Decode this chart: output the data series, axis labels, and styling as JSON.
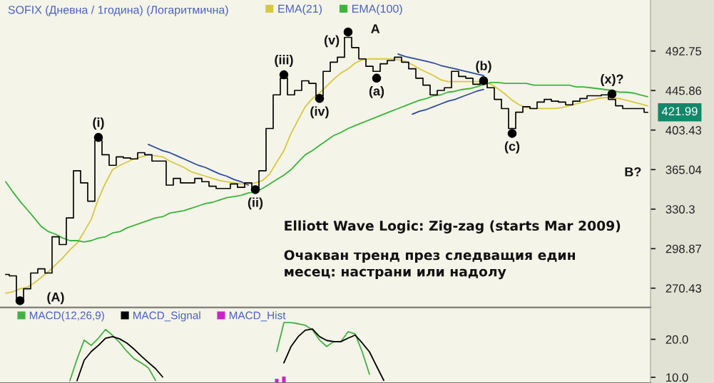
{
  "chart_data": [
    {
      "type": "step",
      "title": "SOFIX (Дневна / 1година) (Логаритмична)",
      "categories": [
        null,
        null,
        null,
        null,
        null,
        null,
        null,
        null,
        null,
        null,
        null,
        null,
        null,
        null,
        null,
        null,
        null,
        null,
        null,
        null,
        null,
        null,
        null,
        null,
        null,
        null,
        null,
        null,
        null,
        null,
        null,
        null,
        null,
        null,
        null,
        null,
        null,
        null,
        null,
        null,
        null,
        null,
        null,
        null,
        null,
        null,
        null,
        null,
        null,
        null,
        null,
        null,
        null,
        null,
        null,
        null,
        null,
        null,
        null,
        null,
        null,
        null,
        null,
        null,
        null,
        null,
        null,
        null,
        null,
        null,
        null,
        null,
        null,
        null,
        null,
        null,
        null,
        null,
        null,
        null,
        null,
        null,
        null,
        null,
        null,
        null,
        null,
        null,
        null,
        null,
        null
      ],
      "series": [
        {
          "color": "#000000",
          "values": [
            280,
            279,
            263,
            270,
            281,
            284,
            281,
            308,
            302,
            323,
            364,
            353,
            337,
            393,
            379,
            369,
            377,
            376,
            375,
            381,
            379,
            373,
            373,
            351,
            357,
            353,
            353,
            357,
            354,
            350,
            348,
            348,
            352,
            349,
            353,
            348,
            364,
            405,
            441,
            460,
            441,
            446,
            457,
            454,
            440,
            468,
            479,
            485,
            510,
            497,
            483,
            474,
            468,
            477,
            481,
            485,
            479,
            471,
            460,
            452,
            441,
            446,
            449,
            468,
            462,
            460,
            453,
            457,
            449,
            436,
            426,
            405,
            422,
            428,
            426,
            433,
            436,
            434,
            433,
            430,
            434,
            437,
            440,
            440,
            441,
            436,
            429,
            426,
            426,
            426,
            421.99
          ],
          "value_labels": [
            null,
            null,
            null,
            null,
            null,
            null,
            null,
            null,
            null,
            null,
            null,
            null,
            null,
            null,
            null,
            null,
            null,
            null,
            null,
            null,
            null,
            null,
            null,
            null,
            null,
            null,
            null,
            null,
            null,
            null,
            null,
            null,
            null,
            null,
            null,
            null,
            null,
            null,
            null,
            null,
            null,
            null,
            null,
            null,
            null,
            null,
            null,
            null,
            null,
            null,
            null,
            null,
            null,
            null,
            null,
            null,
            null,
            null,
            null,
            null,
            null,
            null,
            null,
            null,
            null,
            null,
            null,
            null,
            null,
            null,
            null,
            null,
            null,
            null,
            null,
            null,
            null,
            null,
            null,
            null,
            null,
            null,
            null,
            null,
            null,
            null,
            null,
            null,
            null,
            null,
            "421.99"
          ]
        },
        {
          "name": "EMA(21)",
          "type": "line",
          "color": "#d8c840",
          "values": [
            267,
            268,
            270,
            271,
            274,
            278,
            282,
            287,
            292,
            298,
            303,
            312,
            322,
            339,
            353,
            365,
            369,
            372,
            375,
            377,
            379,
            378,
            377,
            373,
            370,
            367,
            363,
            361,
            359,
            357,
            355,
            354,
            353,
            352,
            352,
            353,
            355,
            361,
            372,
            383,
            400,
            414,
            428,
            437,
            443,
            451,
            459,
            466,
            471,
            478,
            482,
            483,
            483,
            483,
            483,
            482,
            480,
            476,
            471,
            467,
            463,
            458,
            456,
            456,
            456,
            456,
            456,
            456,
            453,
            448,
            442,
            435,
            430,
            427,
            426,
            426,
            426,
            426,
            427,
            429,
            431,
            433,
            435,
            437,
            438,
            438,
            437,
            435,
            433,
            431,
            429
          ]
        },
        {
          "name": "EMA(100)",
          "type": "line",
          "color": "#3cb43c",
          "values": [
            354,
            345,
            337,
            330,
            323,
            316,
            312,
            310,
            307,
            305,
            305,
            304,
            305,
            307,
            308,
            311,
            312,
            315,
            317,
            319,
            321,
            323,
            324,
            327,
            328,
            329,
            331,
            333,
            335,
            336,
            338,
            340,
            341,
            342,
            344,
            345,
            348,
            352,
            356,
            360,
            365,
            372,
            379,
            383,
            388,
            393,
            398,
            401,
            405,
            408,
            411,
            414,
            417,
            420,
            423,
            426,
            429,
            432,
            435,
            437,
            440,
            441,
            444,
            445,
            447,
            448,
            450,
            453,
            455,
            455,
            454,
            454,
            454,
            454,
            452,
            452,
            452,
            452,
            452,
            452,
            450,
            450,
            449,
            448,
            447,
            446,
            444,
            444,
            443,
            441,
            439
          ]
        },
        {
          "type": "line",
          "color": "#2c4c9c",
          "values": [
            null,
            null,
            null,
            null,
            null,
            null,
            null,
            null,
            null,
            null,
            null,
            null,
            null,
            null,
            null,
            null,
            null,
            null,
            null,
            null,
            389,
            386,
            383,
            381,
            378,
            375,
            372,
            369,
            367,
            364,
            361,
            359,
            356,
            354,
            351,
            null,
            null,
            null,
            null,
            null,
            null,
            null,
            null,
            null,
            null,
            null,
            null,
            null,
            null,
            null,
            null,
            null,
            null,
            null,
            null,
            null,
            null,
            null,
            null,
            null,
            null,
            null,
            null,
            null,
            null,
            null,
            null,
            null,
            null,
            null,
            null,
            null,
            null,
            null,
            null,
            null,
            null,
            null,
            null,
            null,
            null,
            null,
            null,
            null,
            null,
            null,
            null,
            null,
            null,
            null,
            null
          ]
        },
        {
          "type": "line",
          "color": "#2c4c9c",
          "values": [
            null,
            null,
            null,
            null,
            null,
            null,
            null,
            null,
            null,
            null,
            null,
            null,
            null,
            null,
            null,
            null,
            null,
            null,
            null,
            null,
            null,
            null,
            null,
            null,
            null,
            null,
            null,
            null,
            null,
            null,
            null,
            null,
            null,
            null,
            null,
            null,
            null,
            null,
            null,
            null,
            null,
            null,
            null,
            null,
            null,
            null,
            null,
            null,
            null,
            null,
            null,
            null,
            null,
            null,
            null,
            489,
            486,
            484,
            482,
            480,
            478,
            475,
            473,
            471,
            469,
            467,
            465,
            463,
            null,
            null,
            null,
            null,
            null,
            null,
            null,
            null,
            null,
            null,
            null,
            null,
            null,
            null,
            null,
            null,
            null,
            null,
            null,
            null,
            null,
            null,
            null
          ]
        },
        {
          "type": "line",
          "color": "#2c4c9c",
          "values": [
            null,
            null,
            null,
            null,
            null,
            null,
            null,
            null,
            null,
            null,
            null,
            null,
            null,
            null,
            null,
            null,
            null,
            null,
            null,
            null,
            null,
            null,
            null,
            null,
            null,
            null,
            null,
            null,
            null,
            null,
            null,
            null,
            null,
            null,
            null,
            null,
            null,
            null,
            null,
            null,
            null,
            null,
            null,
            null,
            null,
            null,
            null,
            null,
            null,
            null,
            null,
            null,
            null,
            null,
            null,
            null,
            null,
            420,
            423,
            425,
            428,
            431,
            434,
            436,
            439,
            442,
            445,
            447,
            null,
            null,
            null,
            null,
            null,
            null,
            null,
            null,
            null,
            null,
            null,
            null,
            null,
            null,
            null,
            null,
            null,
            null,
            null,
            null,
            null,
            null,
            null
          ]
        },
        {
          "type": "scatter",
          "color": "#000000",
          "marker": "circle",
          "values": [
            null,
            null,
            262,
            null,
            null,
            null,
            null,
            null,
            null,
            null,
            null,
            null,
            null,
            396,
            null,
            null,
            null,
            null,
            null,
            null,
            null,
            null,
            null,
            null,
            null,
            null,
            null,
            null,
            null,
            null,
            null,
            null,
            null,
            null,
            null,
            347,
            null,
            null,
            null,
            464,
            null,
            null,
            null,
            null,
            437,
            null,
            null,
            null,
            517,
            null,
            null,
            null,
            460,
            null,
            null,
            null,
            null,
            null,
            null,
            null,
            null,
            null,
            null,
            null,
            null,
            null,
            null,
            457,
            null,
            null,
            null,
            400,
            null,
            null,
            null,
            null,
            null,
            null,
            null,
            null,
            null,
            null,
            null,
            null,
            null,
            442,
            null,
            null,
            null,
            null,
            null
          ]
        }
      ],
      "log": true,
      "ylim": [
        257.6,
        560.6
      ],
      "yticks": [
        270.43,
        298.87,
        330.3,
        365.04,
        403.43,
        445.86,
        492.75
      ],
      "tick_labels": "y",
      "legend": "top left",
      "annotations": [
        {
          "text": "(i)",
          "y": 396
        },
        {
          "text": "(ii)",
          "y": 347
        },
        {
          "text": "(iii)",
          "y": 464
        },
        {
          "text": "(iv)",
          "y": 437
        },
        {
          "text": "(a)",
          "y": 460
        },
        {
          "text": "(b)",
          "y": 457
        },
        {
          "text": "(c)",
          "y": 400
        },
        {
          "text": "(x)?",
          "y": 442
        },
        "(A)",
        "(v)",
        "A",
        "B?",
        "Elliott Wave Logic: Zig-zag (starts Mar 2009)",
        "Очакван тренд през следващия един\nмесец: настрани или надолу"
      ]
    },
    {
      "type": "line",
      "categories": [
        null,
        null,
        null,
        null,
        null,
        null,
        null,
        null,
        null,
        null,
        null,
        null,
        null,
        null,
        null,
        null,
        null,
        null,
        null,
        null,
        null,
        null,
        null,
        null,
        null,
        null,
        null,
        null,
        null,
        null,
        null,
        null,
        null,
        null,
        null,
        null,
        null,
        null,
        null,
        null,
        null,
        null,
        null,
        null,
        null,
        null,
        null,
        null,
        null,
        null,
        null,
        null,
        null,
        null,
        null,
        null,
        null,
        null,
        null,
        null,
        null,
        null,
        null,
        null,
        null,
        null,
        null,
        null,
        null,
        null,
        null,
        null,
        null,
        null,
        null,
        null,
        null,
        null,
        null,
        null,
        null,
        null,
        null,
        null,
        null,
        null,
        null,
        null,
        null,
        null,
        null
      ],
      "series": [
        {
          "name": "MACD(12,26,9)",
          "color": "#44b044",
          "values": [
            null,
            null,
            null,
            null,
            null,
            null,
            null,
            null,
            null,
            9.1,
            14.8,
            19.8,
            18.4,
            20.3,
            22.6,
            21.0,
            19.1,
            16.8,
            14.9,
            13.8,
            12.5,
            9.2,
            null,
            null,
            null,
            null,
            null,
            null,
            null,
            null,
            null,
            null,
            null,
            null,
            null,
            null,
            null,
            null,
            16.8,
            24.4,
            24.4,
            24.1,
            23.7,
            22.5,
            19.8,
            18.1,
            19.4,
            19.4,
            22.0,
            21.4,
            16.6,
            10.8,
            null,
            null,
            null,
            null,
            null,
            null,
            null,
            null,
            null,
            null,
            null,
            null,
            null,
            null,
            null,
            null,
            null,
            null,
            null,
            null,
            null,
            null,
            null,
            null,
            null,
            null,
            null,
            null,
            null,
            null,
            null,
            null,
            null,
            null,
            null,
            null,
            null,
            null,
            null
          ]
        },
        {
          "name": "MACD_Signal",
          "color": "#000000",
          "values": [
            null,
            null,
            null,
            null,
            null,
            null,
            null,
            null,
            null,
            null,
            9.1,
            14.5,
            16.8,
            18.4,
            20.3,
            20.7,
            20.1,
            19.0,
            17.4,
            15.6,
            13.9,
            12.3,
            10.1,
            null,
            null,
            null,
            null,
            null,
            null,
            null,
            null,
            null,
            null,
            null,
            null,
            null,
            null,
            null,
            null,
            13.8,
            18.1,
            20.7,
            22.4,
            22.7,
            20.7,
            19.7,
            19.4,
            19.4,
            20.3,
            21.1,
            19.0,
            16.7,
            12.9,
            9.2,
            null,
            null,
            null,
            null,
            null,
            null,
            null,
            null,
            null,
            null,
            null,
            null,
            null,
            null,
            null,
            null,
            null,
            null,
            null,
            null,
            null,
            null,
            null,
            null,
            null,
            null,
            null,
            null,
            null,
            null,
            null,
            null,
            null,
            null,
            null,
            null,
            null
          ]
        },
        {
          "name": "MACD_Hist",
          "type": "bar",
          "color": "#cc22cc",
          "values": [
            null,
            null,
            null,
            null,
            null,
            null,
            null,
            null,
            null,
            null,
            null,
            null,
            null,
            null,
            null,
            null,
            null,
            null,
            null,
            null,
            null,
            null,
            null,
            null,
            null,
            null,
            null,
            null,
            null,
            null,
            null,
            null,
            null,
            null,
            null,
            null,
            null,
            null,
            9.6,
            10.2,
            null,
            null,
            null,
            null,
            null,
            null,
            null,
            null,
            null,
            null,
            null,
            null,
            null,
            null,
            null,
            null,
            null,
            null,
            null,
            null,
            null,
            null,
            null,
            null,
            null,
            null,
            null,
            null,
            null,
            null,
            null,
            null,
            null,
            null,
            null,
            null,
            null,
            null,
            null,
            null,
            null,
            null,
            null,
            null,
            null,
            null,
            null,
            null,
            null,
            null,
            null
          ]
        }
      ],
      "ylim": [
        8.5,
        28.0
      ],
      "yticks": [
        {
          "value": 10,
          "label": "10.0"
        },
        {
          "value": 20,
          "label": "20.0"
        }
      ],
      "tick_labels": "y",
      "legend": "top left"
    }
  ]
}
